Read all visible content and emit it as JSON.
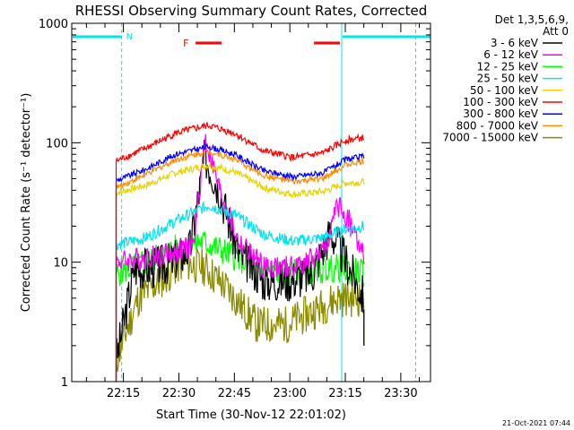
{
  "chart_data": {
    "type": "line",
    "title": "RHESSI Observing Summary Count Rates, Corrected",
    "xlabel": "Start Time (30-Nov-12 22:01:02)",
    "ylabel": "Corrected Count Rate (s⁻¹ detector⁻¹)",
    "y_scale": "log",
    "ylim": [
      1,
      1000
    ],
    "xlim_minutes_from_start": [
      0,
      97
    ],
    "y_ticks": [
      "1",
      "10",
      "100",
      "1000"
    ],
    "x_ticks": [
      {
        "label": "22:15",
        "t": 13.97
      },
      {
        "label": "22:30",
        "t": 28.97
      },
      {
        "label": "22:45",
        "t": 43.97
      },
      {
        "label": "23:00",
        "t": 58.97
      },
      {
        "label": "23:15",
        "t": 73.97
      },
      {
        "label": "23:30",
        "t": 88.97
      }
    ],
    "legend": {
      "position": "right",
      "header": [
        "Det 1,3,5,6,9,",
        "Att 0"
      ]
    },
    "data_window_minutes": [
      12,
      79
    ],
    "series": [
      {
        "name": "3 - 6 keV",
        "color": "#000000",
        "level_start": 1.5,
        "level_end": 5,
        "peak": 78,
        "peak_t": 36,
        "noise": 0.18,
        "x": [
          12,
          17,
          22,
          27,
          32,
          36,
          40,
          45,
          52,
          58,
          65,
          70,
          75,
          79
        ],
        "values": [
          1.5,
          9,
          9,
          10,
          13,
          78,
          40,
          12,
          7,
          7,
          8,
          18,
          9,
          5
        ]
      },
      {
        "name": "6 - 12 keV",
        "color": "#ff00ff",
        "level_start": 10,
        "level_end": 11,
        "peak": 110,
        "peak_t": 36,
        "noise": 0.1,
        "x": [
          12,
          20,
          28,
          33,
          36,
          40,
          45,
          52,
          60,
          68,
          72,
          75,
          79
        ],
        "values": [
          10,
          11,
          12,
          14,
          110,
          40,
          15,
          9,
          9,
          12,
          30,
          22,
          11
        ]
      },
      {
        "name": "12 - 25 keV",
        "color": "#00ff00",
        "level_start": 8,
        "level_end": 8,
        "peak": 15,
        "peak_t": 32,
        "noise": 0.12,
        "x": [
          12,
          20,
          28,
          35,
          42,
          50,
          58,
          66,
          72,
          79
        ],
        "values": [
          8,
          10,
          13,
          15,
          12,
          9,
          8,
          8.5,
          9,
          8
        ]
      },
      {
        "name": "25 - 50 keV",
        "color": "#00e5ee",
        "level_start": 14,
        "level_end": 20,
        "peak": 30,
        "peak_t": 37,
        "noise": 0.05,
        "x": [
          12,
          20,
          28,
          37,
          44,
          52,
          60,
          68,
          74,
          79
        ],
        "values": [
          14,
          16,
          22,
          30,
          25,
          17,
          15,
          16,
          19,
          20
        ]
      },
      {
        "name": "50 - 100 keV",
        "color": "#e6d400",
        "level_start": 38,
        "level_end": 47,
        "peak": 65,
        "peak_t": 37,
        "noise": 0.03,
        "x": [
          12,
          20,
          28,
          37,
          44,
          52,
          60,
          68,
          74,
          79
        ],
        "values": [
          38,
          44,
          56,
          65,
          57,
          42,
          37,
          39,
          46,
          47
        ]
      },
      {
        "name": "100 - 300 keV",
        "color": "#ff0000",
        "level_start": 70,
        "level_end": 110,
        "peak": 140,
        "peak_t": 37,
        "noise": 0.03,
        "x": [
          12,
          20,
          28,
          37,
          44,
          52,
          60,
          68,
          74,
          79
        ],
        "values": [
          70,
          90,
          120,
          140,
          120,
          85,
          75,
          82,
          105,
          110
        ]
      },
      {
        "name": "300 - 800 keV",
        "color": "#0000ff",
        "level_start": 48,
        "level_end": 77,
        "peak": 93,
        "peak_t": 37,
        "noise": 0.025,
        "x": [
          12,
          20,
          28,
          37,
          44,
          52,
          60,
          68,
          74,
          79
        ],
        "values": [
          48,
          60,
          80,
          93,
          80,
          58,
          52,
          56,
          72,
          77
        ]
      },
      {
        "name": "800 - 7000 keV",
        "color": "#ff8c00",
        "level_start": 42,
        "level_end": 70,
        "peak": 85,
        "peak_t": 37,
        "noise": 0.025,
        "x": [
          12,
          20,
          28,
          37,
          44,
          52,
          60,
          68,
          74,
          79
        ],
        "values": [
          42,
          54,
          72,
          85,
          73,
          53,
          47,
          50,
          65,
          70
        ]
      },
      {
        "name": "7000 - 15000 keV",
        "color": "#8b8b00",
        "level_start": 1.5,
        "level_end": 5,
        "peak": 10,
        "peak_t": 32,
        "noise": 0.16,
        "x": [
          12,
          18,
          24,
          30,
          36,
          42,
          50,
          58,
          66,
          72,
          79
        ],
        "values": [
          1.5,
          5,
          7,
          10,
          9,
          6,
          3,
          3,
          4,
          5,
          5
        ]
      }
    ],
    "orbit_markers": {
      "color": "#00e5ee",
      "night_bars": [
        [
          0,
          13.5
        ],
        [
          73,
          97
        ]
      ],
      "night_label": "N",
      "vertical_lines": [
        0,
        13.5,
        73,
        93
      ]
    },
    "flare_markers": {
      "color": "#ff0000",
      "label": "F",
      "bars": [
        [
          33.5,
          40.5
        ],
        [
          65.5,
          72.5
        ]
      ]
    },
    "timestamp": "21-Oct-2021 07:44"
  }
}
